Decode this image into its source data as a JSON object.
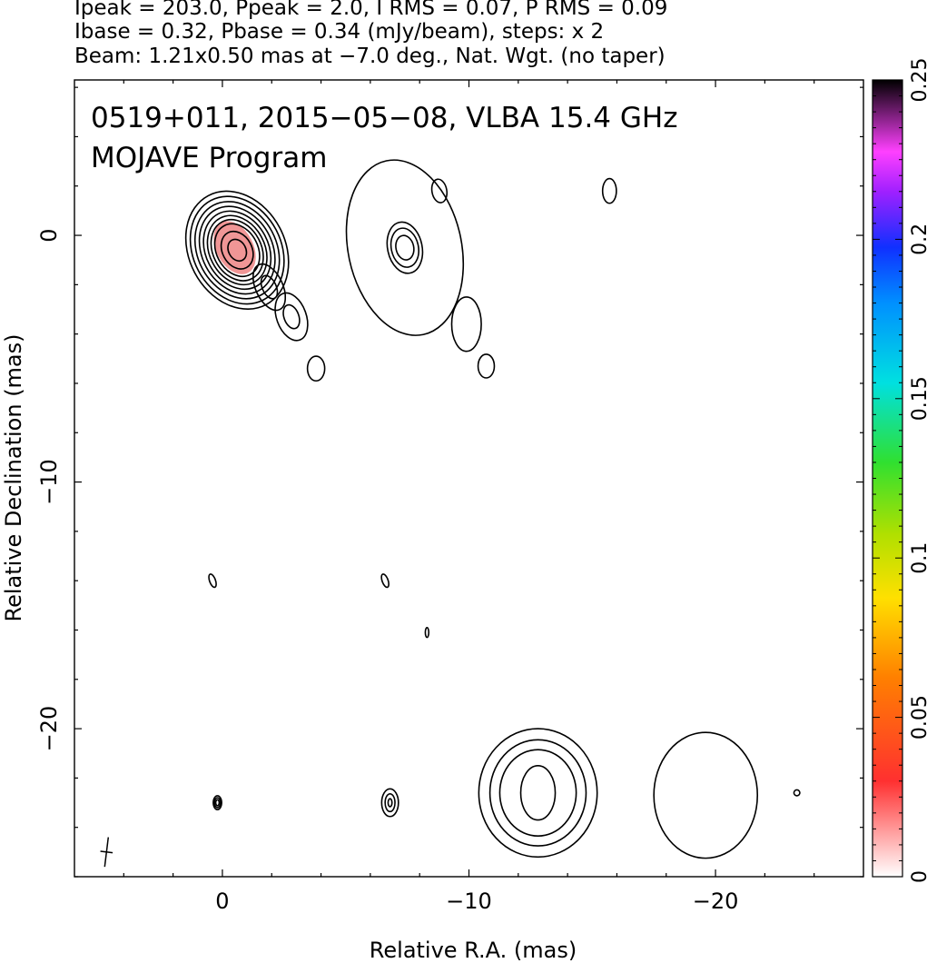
{
  "header": {
    "line1": "Ipeak = 203.0, Ppeak = 2.0, I RMS = 0.07, P RMS = 0.09",
    "line2": "Ibase = 0.32, Pbase = 0.34 (mJy/beam), steps: x 2",
    "line3": "Beam: 1.21x0.50 mas at −7.0 deg., Nat. Wgt. (no taper)"
  },
  "chart_data": {
    "type": "contour",
    "title_line1": "0519+011, 2015−05−08, VLBA 15.4 GHz",
    "title_line2": "MOJAVE Program",
    "xlabel": "Relative R.A. (mas)",
    "ylabel": "Relative Declination (mas)",
    "xlim": [
      6,
      -26
    ],
    "ylim": [
      -26,
      6.3
    ],
    "x_ticks": [
      0,
      -10,
      -20
    ],
    "x_tick_labels": [
      "0",
      "−10",
      "−20"
    ],
    "y_ticks": [
      0,
      -10,
      -20
    ],
    "y_tick_labels": [
      "0",
      "−10",
      "−20"
    ],
    "colorbar": {
      "range": [
        0,
        0.25
      ],
      "ticks": [
        0,
        0.05,
        0.1,
        0.15,
        0.2,
        0.25
      ],
      "tick_labels": [
        "0",
        "0.05",
        "0.1",
        "0.15",
        "0.2",
        "0.25"
      ]
    },
    "beam": {
      "major_mas": 1.21,
      "minor_mas": 0.5,
      "pa_deg": -7.0
    },
    "contour_sources": [
      {
        "id": "core",
        "x": -0.6,
        "y": -0.6,
        "levels": 10,
        "peak": true
      },
      {
        "id": "core-ext-1",
        "x": -1.9,
        "y": -2.1,
        "levels": 2
      },
      {
        "id": "core-ext-2",
        "x": -2.8,
        "y": -3.3,
        "levels": 2
      },
      {
        "id": "core-ext-3",
        "x": -3.8,
        "y": -5.4,
        "levels": 1
      },
      {
        "id": "knot-a",
        "x": -7.4,
        "y": -0.5,
        "levels": 4
      },
      {
        "id": "knot-a-ext",
        "x": -9.9,
        "y": -3.6,
        "levels": 1
      },
      {
        "id": "knot-a-blob",
        "x": -10.7,
        "y": -5.3,
        "levels": 1
      },
      {
        "id": "north-blob-1",
        "x": -8.8,
        "y": 1.8,
        "levels": 1
      },
      {
        "id": "north-blob-2",
        "x": -15.7,
        "y": 1.8,
        "levels": 1
      },
      {
        "id": "spot-1",
        "x": 0.4,
        "y": -14.0,
        "levels": 1
      },
      {
        "id": "spot-2",
        "x": -6.6,
        "y": -14.0,
        "levels": 1
      },
      {
        "id": "spot-3",
        "x": -8.3,
        "y": -16.1,
        "levels": 1
      },
      {
        "id": "spot-4",
        "x": 0.2,
        "y": -23.0,
        "levels": 3
      },
      {
        "id": "spot-5",
        "x": -6.8,
        "y": -23.0,
        "levels": 3
      },
      {
        "id": "lobe-1",
        "x": -12.8,
        "y": -22.6,
        "levels": 4
      },
      {
        "id": "lobe-2",
        "x": -19.6,
        "y": -22.7,
        "levels": 1
      },
      {
        "id": "spot-6",
        "x": -23.3,
        "y": -22.6,
        "levels": 1
      }
    ]
  }
}
